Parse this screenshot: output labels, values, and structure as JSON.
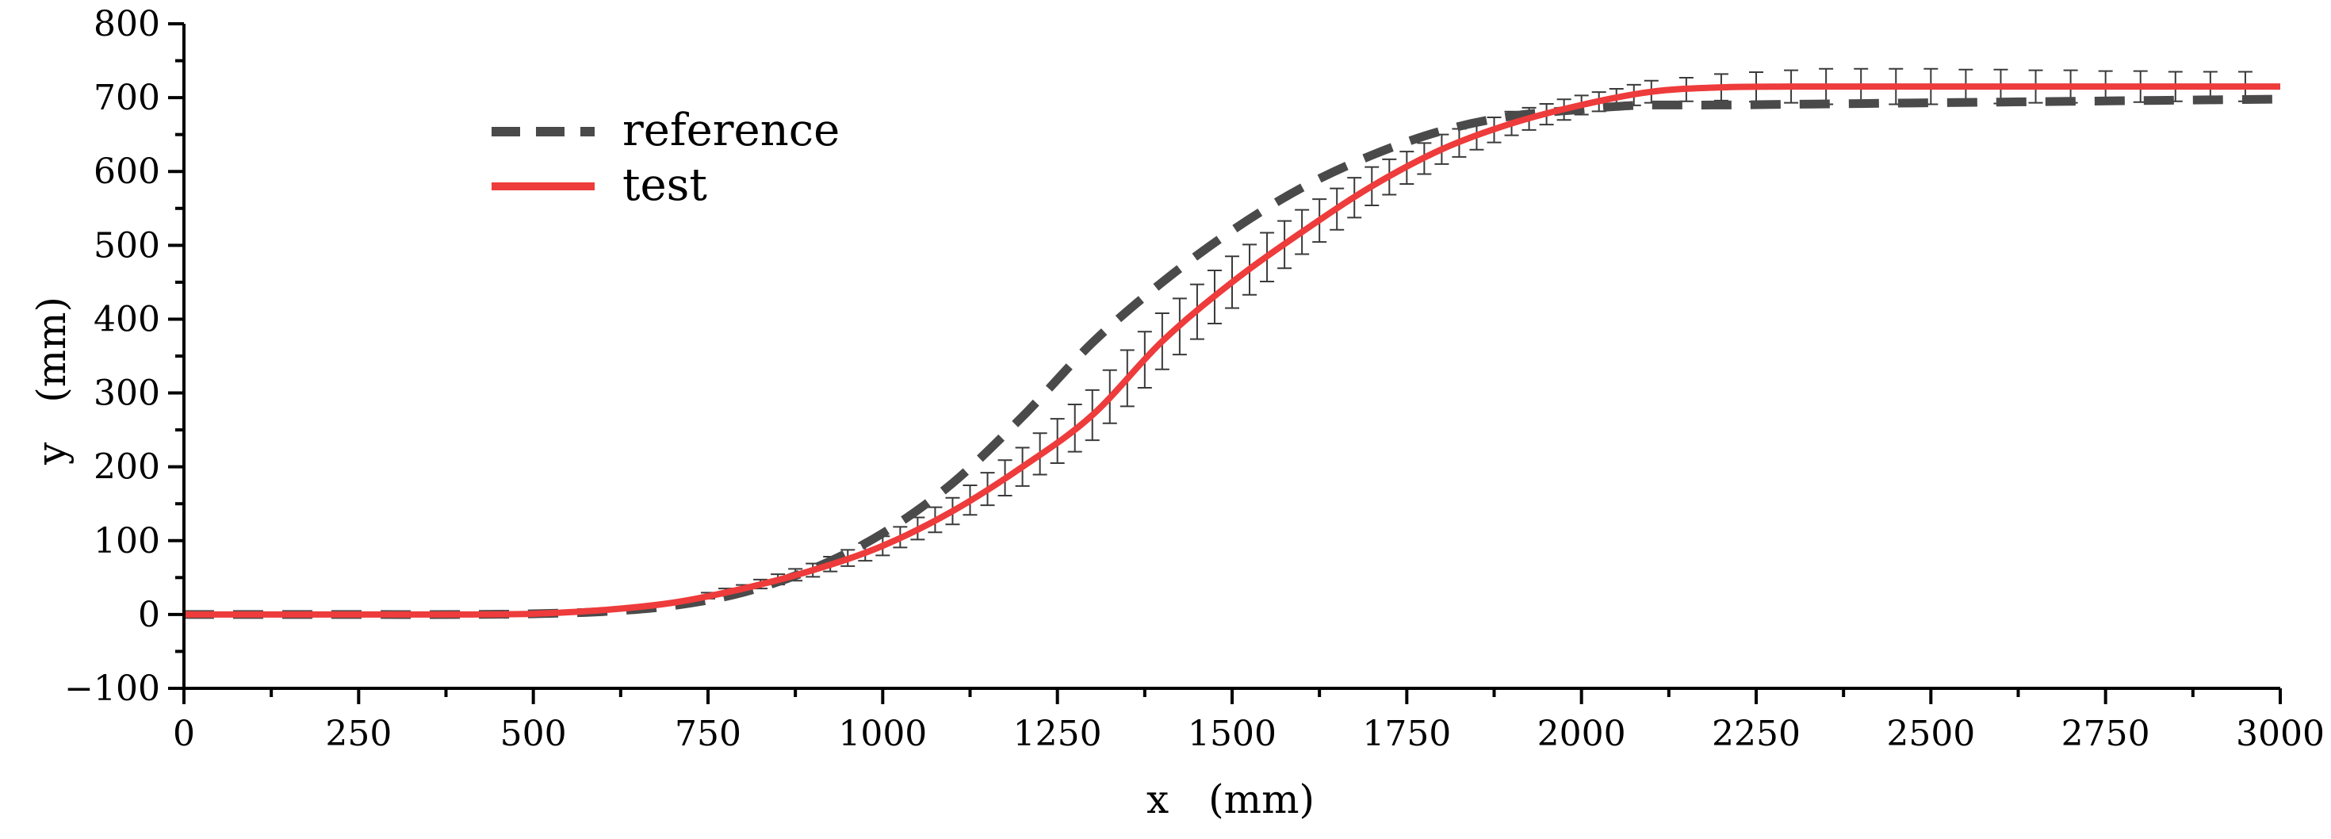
{
  "chart_data": {
    "type": "line",
    "title": "",
    "xlabel": "x　(mm)",
    "ylabel": "y　(mm)",
    "xlim": [
      0,
      3000
    ],
    "ylim": [
      -100,
      800
    ],
    "xticks": [
      0,
      250,
      500,
      750,
      1000,
      1250,
      1500,
      1750,
      2000,
      2250,
      2500,
      2750,
      3000
    ],
    "xtick_labels": [
      "0",
      "250",
      "500",
      "750",
      "1000",
      "1250",
      "1500",
      "1750",
      "2000",
      "2250",
      "2500",
      "2750",
      "3000"
    ],
    "yticks": [
      -100,
      0,
      100,
      200,
      300,
      400,
      500,
      600,
      700,
      800
    ],
    "ytick_labels": [
      "−100",
      "0",
      "100",
      "200",
      "300",
      "400",
      "500",
      "600",
      "700",
      "800"
    ],
    "grid": false,
    "legend_position": "top-left",
    "series": [
      {
        "name": "reference",
        "style": "dashed",
        "color": "#4a4a4a",
        "x": [
          0,
          200,
          400,
          500,
          600,
          700,
          800,
          900,
          1000,
          1100,
          1200,
          1300,
          1400,
          1500,
          1600,
          1700,
          1800,
          1900,
          2000,
          2050,
          2100,
          2200,
          2300,
          2400,
          2500,
          2600,
          2700,
          2800,
          2900,
          3000
        ],
        "y": [
          0,
          0,
          0,
          1,
          4,
          12,
          30,
          62,
          110,
          178,
          268,
          368,
          450,
          520,
          578,
          622,
          655,
          675,
          684,
          688,
          690,
          690,
          691,
          692,
          693,
          694,
          695,
          696,
          697,
          698
        ]
      },
      {
        "name": "test",
        "style": "solid",
        "color": "#ee3b3b",
        "x": [
          0,
          200,
          400,
          500,
          600,
          700,
          800,
          900,
          1000,
          1100,
          1200,
          1300,
          1400,
          1500,
          1600,
          1700,
          1800,
          1900,
          2000,
          2100,
          2200,
          2300,
          2400,
          2500,
          2600,
          2700,
          2800,
          2900,
          3000
        ],
        "y": [
          0,
          0,
          0,
          1,
          6,
          16,
          35,
          60,
          93,
          140,
          200,
          270,
          370,
          450,
          518,
          580,
          630,
          665,
          690,
          708,
          714,
          715,
          715,
          715,
          715,
          715,
          715,
          715,
          715
        ],
        "error_bars": {
          "x": [
            750,
            775,
            800,
            825,
            850,
            875,
            900,
            925,
            950,
            975,
            1000,
            1025,
            1050,
            1075,
            1100,
            1125,
            1150,
            1175,
            1200,
            1225,
            1250,
            1275,
            1300,
            1325,
            1350,
            1375,
            1400,
            1425,
            1450,
            1475,
            1500,
            1525,
            1550,
            1575,
            1600,
            1625,
            1650,
            1675,
            1700,
            1725,
            1750,
            1775,
            1800,
            1825,
            1850,
            1875,
            1900,
            1925,
            1950,
            1975,
            2000,
            2025,
            2050,
            2075,
            2100,
            2150,
            2200,
            2250,
            2300,
            2350,
            2400,
            2450,
            2500,
            2550,
            2600,
            2650,
            2700,
            2750,
            2800,
            2850,
            2900,
            2950
          ],
          "err": [
            4,
            5,
            5,
            6,
            7,
            8,
            9,
            10,
            11,
            12,
            13,
            14,
            15,
            17,
            18,
            20,
            22,
            24,
            26,
            28,
            30,
            32,
            34,
            36,
            38,
            38,
            38,
            38,
            37,
            36,
            35,
            34,
            33,
            32,
            30,
            29,
            28,
            27,
            26,
            24,
            22,
            21,
            20,
            19,
            18,
            17,
            16,
            15,
            14,
            14,
            13,
            13,
            13,
            14,
            15,
            16,
            18,
            20,
            22,
            24,
            24,
            24,
            24,
            23,
            23,
            22,
            22,
            21,
            21,
            20,
            20,
            20
          ]
        }
      }
    ]
  }
}
